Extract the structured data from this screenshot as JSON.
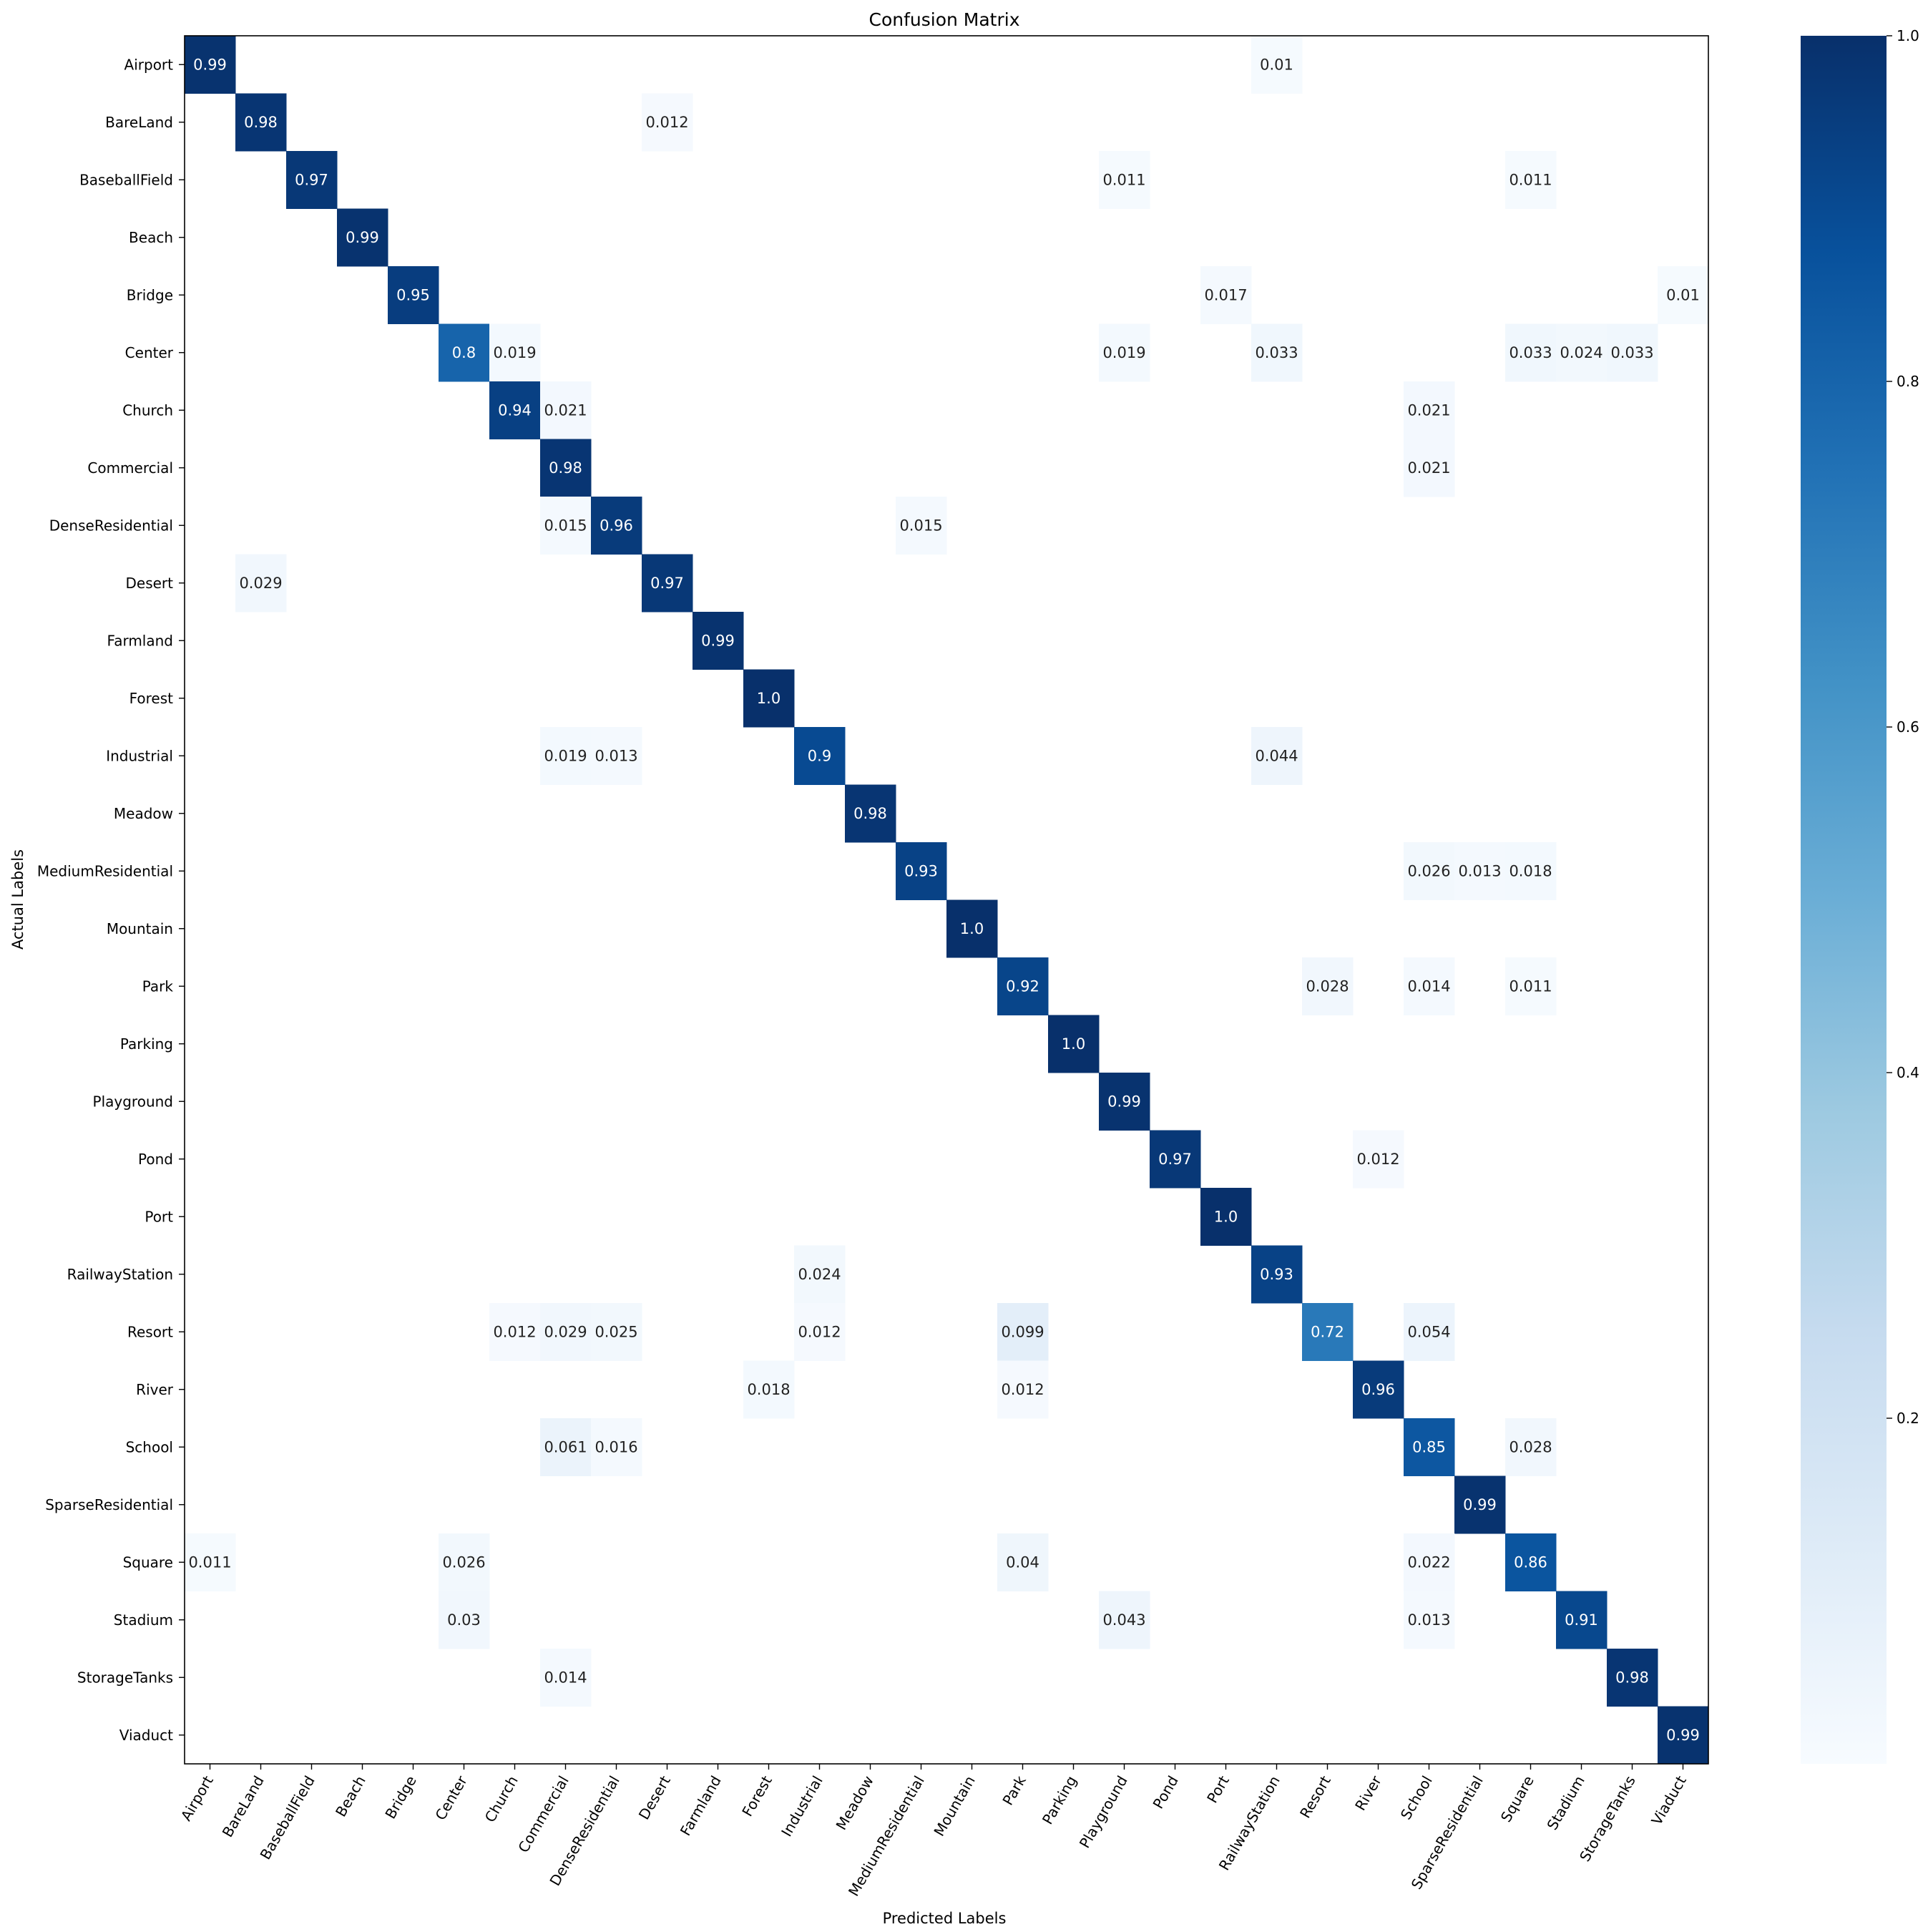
{
  "chart_data": {
    "type": "heatmap",
    "title": "Confusion Matrix",
    "xlabel": "Predicted Labels",
    "ylabel": "Actual Labels",
    "categories": [
      "Airport",
      "BareLand",
      "BaseballField",
      "Beach",
      "Bridge",
      "Center",
      "Church",
      "Commercial",
      "DenseResidential",
      "Desert",
      "Farmland",
      "Forest",
      "Industrial",
      "Meadow",
      "MediumResidential",
      "Mountain",
      "Park",
      "Parking",
      "Playground",
      "Pond",
      "Port",
      "RailwayStation",
      "Resort",
      "River",
      "School",
      "SparseResidential",
      "Square",
      "Stadium",
      "StorageTanks",
      "Viaduct"
    ],
    "colormap": "Blues",
    "colorbar": {
      "range": [
        0,
        1.0
      ],
      "ticks": [
        "0.2",
        "0.4",
        "0.6",
        "0.8",
        "1.0"
      ]
    },
    "cells": [
      {
        "row": 0,
        "col": 0,
        "label": "0.99"
      },
      {
        "row": 0,
        "col": 21,
        "label": "0.01"
      },
      {
        "row": 1,
        "col": 1,
        "label": "0.98"
      },
      {
        "row": 1,
        "col": 9,
        "label": "0.012"
      },
      {
        "row": 2,
        "col": 2,
        "label": "0.97"
      },
      {
        "row": 2,
        "col": 18,
        "label": "0.011"
      },
      {
        "row": 2,
        "col": 26,
        "label": "0.011"
      },
      {
        "row": 3,
        "col": 3,
        "label": "0.99"
      },
      {
        "row": 4,
        "col": 4,
        "label": "0.95"
      },
      {
        "row": 4,
        "col": 20,
        "label": "0.017"
      },
      {
        "row": 4,
        "col": 29,
        "label": "0.01"
      },
      {
        "row": 5,
        "col": 5,
        "label": "0.8"
      },
      {
        "row": 5,
        "col": 6,
        "label": "0.019"
      },
      {
        "row": 5,
        "col": 18,
        "label": "0.019"
      },
      {
        "row": 5,
        "col": 21,
        "label": "0.033"
      },
      {
        "row": 5,
        "col": 26,
        "label": "0.033"
      },
      {
        "row": 5,
        "col": 27,
        "label": "0.024"
      },
      {
        "row": 5,
        "col": 28,
        "label": "0.033"
      },
      {
        "row": 6,
        "col": 6,
        "label": "0.94"
      },
      {
        "row": 6,
        "col": 7,
        "label": "0.021"
      },
      {
        "row": 6,
        "col": 24,
        "label": "0.021"
      },
      {
        "row": 7,
        "col": 7,
        "label": "0.98"
      },
      {
        "row": 7,
        "col": 24,
        "label": "0.021"
      },
      {
        "row": 8,
        "col": 7,
        "label": "0.015"
      },
      {
        "row": 8,
        "col": 8,
        "label": "0.96"
      },
      {
        "row": 8,
        "col": 14,
        "label": "0.015"
      },
      {
        "row": 9,
        "col": 1,
        "label": "0.029"
      },
      {
        "row": 9,
        "col": 9,
        "label": "0.97"
      },
      {
        "row": 10,
        "col": 10,
        "label": "0.99"
      },
      {
        "row": 11,
        "col": 11,
        "label": "1.0"
      },
      {
        "row": 12,
        "col": 7,
        "label": "0.019"
      },
      {
        "row": 12,
        "col": 8,
        "label": "0.013"
      },
      {
        "row": 12,
        "col": 12,
        "label": "0.9"
      },
      {
        "row": 12,
        "col": 21,
        "label": "0.044"
      },
      {
        "row": 13,
        "col": 13,
        "label": "0.98"
      },
      {
        "row": 14,
        "col": 14,
        "label": "0.93"
      },
      {
        "row": 14,
        "col": 24,
        "label": "0.026"
      },
      {
        "row": 14,
        "col": 25,
        "label": "0.013"
      },
      {
        "row": 14,
        "col": 26,
        "label": "0.018"
      },
      {
        "row": 15,
        "col": 15,
        "label": "1.0"
      },
      {
        "row": 16,
        "col": 16,
        "label": "0.92"
      },
      {
        "row": 16,
        "col": 22,
        "label": "0.028"
      },
      {
        "row": 16,
        "col": 24,
        "label": "0.014"
      },
      {
        "row": 16,
        "col": 26,
        "label": "0.011"
      },
      {
        "row": 17,
        "col": 17,
        "label": "1.0"
      },
      {
        "row": 18,
        "col": 18,
        "label": "0.99"
      },
      {
        "row": 19,
        "col": 19,
        "label": "0.97"
      },
      {
        "row": 19,
        "col": 23,
        "label": "0.012"
      },
      {
        "row": 20,
        "col": 20,
        "label": "1.0"
      },
      {
        "row": 21,
        "col": 12,
        "label": "0.024"
      },
      {
        "row": 21,
        "col": 21,
        "label": "0.93"
      },
      {
        "row": 22,
        "col": 6,
        "label": "0.012"
      },
      {
        "row": 22,
        "col": 7,
        "label": "0.029"
      },
      {
        "row": 22,
        "col": 8,
        "label": "0.025"
      },
      {
        "row": 22,
        "col": 12,
        "label": "0.012"
      },
      {
        "row": 22,
        "col": 16,
        "label": "0.099"
      },
      {
        "row": 22,
        "col": 22,
        "label": "0.72"
      },
      {
        "row": 22,
        "col": 24,
        "label": "0.054"
      },
      {
        "row": 23,
        "col": 11,
        "label": "0.018"
      },
      {
        "row": 23,
        "col": 16,
        "label": "0.012"
      },
      {
        "row": 23,
        "col": 23,
        "label": "0.96"
      },
      {
        "row": 24,
        "col": 7,
        "label": "0.061"
      },
      {
        "row": 24,
        "col": 8,
        "label": "0.016"
      },
      {
        "row": 24,
        "col": 24,
        "label": "0.85"
      },
      {
        "row": 24,
        "col": 26,
        "label": "0.028"
      },
      {
        "row": 25,
        "col": 25,
        "label": "0.99"
      },
      {
        "row": 26,
        "col": 0,
        "label": "0.011"
      },
      {
        "row": 26,
        "col": 5,
        "label": "0.026"
      },
      {
        "row": 26,
        "col": 16,
        "label": "0.04"
      },
      {
        "row": 26,
        "col": 24,
        "label": "0.022"
      },
      {
        "row": 26,
        "col": 26,
        "label": "0.86"
      },
      {
        "row": 27,
        "col": 5,
        "label": "0.03"
      },
      {
        "row": 27,
        "col": 18,
        "label": "0.043"
      },
      {
        "row": 27,
        "col": 24,
        "label": "0.013"
      },
      {
        "row": 27,
        "col": 27,
        "label": "0.91"
      },
      {
        "row": 28,
        "col": 7,
        "label": "0.014"
      },
      {
        "row": 28,
        "col": 28,
        "label": "0.98"
      },
      {
        "row": 29,
        "col": 29,
        "label": "0.99"
      }
    ]
  }
}
